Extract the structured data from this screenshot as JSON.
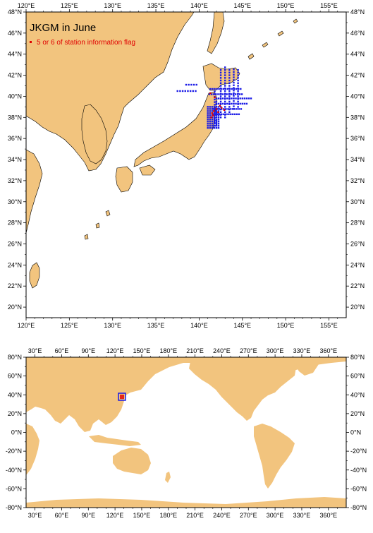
{
  "title": "JKGM in June",
  "legend": {
    "label": "5 or 6 of station information flag",
    "marker_color": "#e00000"
  },
  "colors": {
    "land": "#f2c47e",
    "ocean": "#ffffff",
    "stations": "#1a1ae6",
    "flagged": "#e00000"
  },
  "top_map": {
    "lon_range": [
      120,
      157
    ],
    "lat_range": [
      19,
      48
    ],
    "lon_ticks": [
      "120°E",
      "125°E",
      "130°E",
      "135°E",
      "140°E",
      "145°E",
      "150°E",
      "155°E"
    ],
    "lat_ticks": [
      "48°N",
      "46°N",
      "44°N",
      "42°N",
      "40°N",
      "38°N",
      "36°N",
      "34°N",
      "32°N",
      "30°N",
      "28°N",
      "26°N",
      "24°N",
      "22°N",
      "20°N"
    ]
  },
  "bottom_map": {
    "lon_range": [
      20,
      380
    ],
    "lat_range": [
      -80,
      80
    ],
    "lon_ticks": [
      "30°E",
      "60°E",
      "90°E",
      "120°E",
      "150°E",
      "180°E",
      "210°E",
      "240°E",
      "270°E",
      "300°E",
      "330°E",
      "360°E"
    ],
    "lat_ticks": [
      "80°N",
      "60°N",
      "40°N",
      "20°N",
      "0°N",
      "-20°N",
      "-40°N",
      "-60°N",
      "-80°N"
    ]
  }
}
